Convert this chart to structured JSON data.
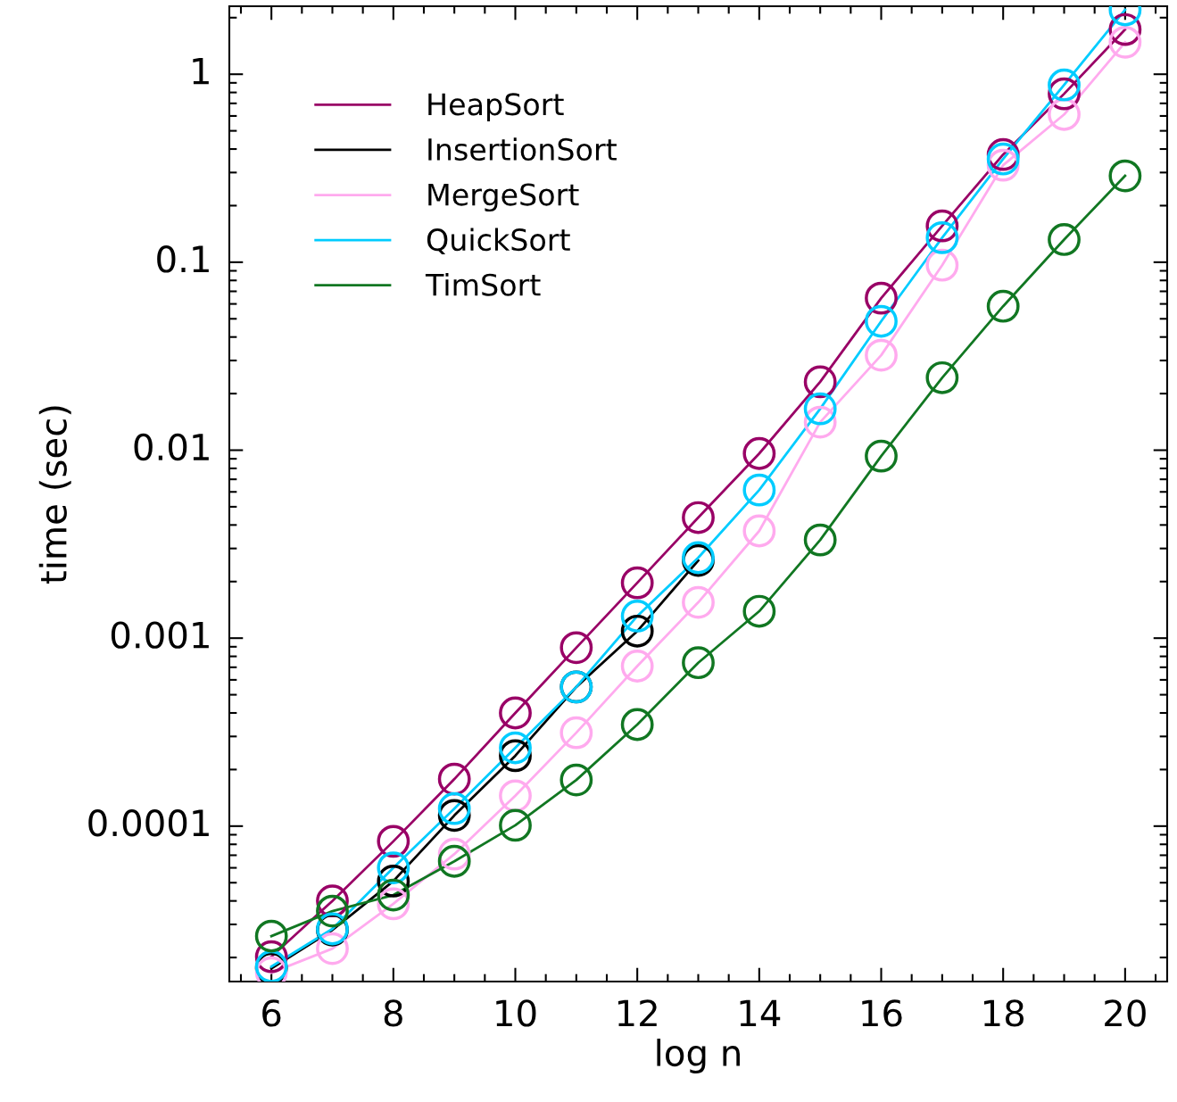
{
  "chart_data": {
    "type": "line",
    "xlabel": "log n",
    "ylabel": "time (sec)",
    "x": [
      6,
      7,
      8,
      9,
      10,
      11,
      12,
      13,
      14,
      15,
      16,
      17,
      18,
      19,
      20
    ],
    "series": [
      {
        "name": "HeapSort",
        "color": "#990066",
        "values": [
          2.02e-05,
          4e-05,
          8.3e-05,
          0.000178,
          0.0004,
          0.00089,
          0.00197,
          0.00438,
          0.0096,
          0.0231,
          0.0644,
          0.156,
          0.374,
          0.787,
          1.73
        ]
      },
      {
        "name": "InsertionSort",
        "color": "#000000",
        "values": [
          1.75e-05,
          2.8e-05,
          5.1e-05,
          0.000114,
          0.000237,
          0.00055,
          0.00109,
          0.00259,
          null,
          null,
          null,
          null,
          null,
          null,
          null
        ]
      },
      {
        "name": "MergeSort",
        "color": "#ffaaee",
        "values": [
          1.66e-05,
          2.23e-05,
          3.86e-05,
          7.1e-05,
          0.000145,
          0.000314,
          0.00071,
          0.00155,
          0.00372,
          0.0141,
          0.032,
          0.0964,
          0.328,
          0.611,
          1.48
        ]
      },
      {
        "name": "QuickSort",
        "color": "#00ccff",
        "values": [
          1.79e-05,
          2.84e-05,
          6e-05,
          0.000124,
          0.000261,
          0.00055,
          0.00131,
          0.00268,
          0.00614,
          0.0166,
          0.0485,
          0.135,
          0.354,
          0.877,
          2.2
        ]
      },
      {
        "name": "TimSort",
        "color": "#117722",
        "values": [
          2.6e-05,
          3.53e-05,
          4.3e-05,
          6.5e-05,
          0.000101,
          0.000176,
          0.000347,
          0.00074,
          0.00139,
          0.00333,
          0.0093,
          0.0243,
          0.0583,
          0.132,
          0.288
        ]
      }
    ],
    "xlim": [
      5.31,
      20.69
    ],
    "xticks": [
      6,
      8,
      10,
      12,
      14,
      16,
      18,
      20
    ],
    "ylim": [
      1.49e-05,
      2.3
    ],
    "yticks": [
      0.0001,
      0.001,
      0.01,
      0.1,
      1
    ],
    "log": "y",
    "marker": "circle",
    "line_style": "solid",
    "legend": "top left",
    "grid": false
  }
}
